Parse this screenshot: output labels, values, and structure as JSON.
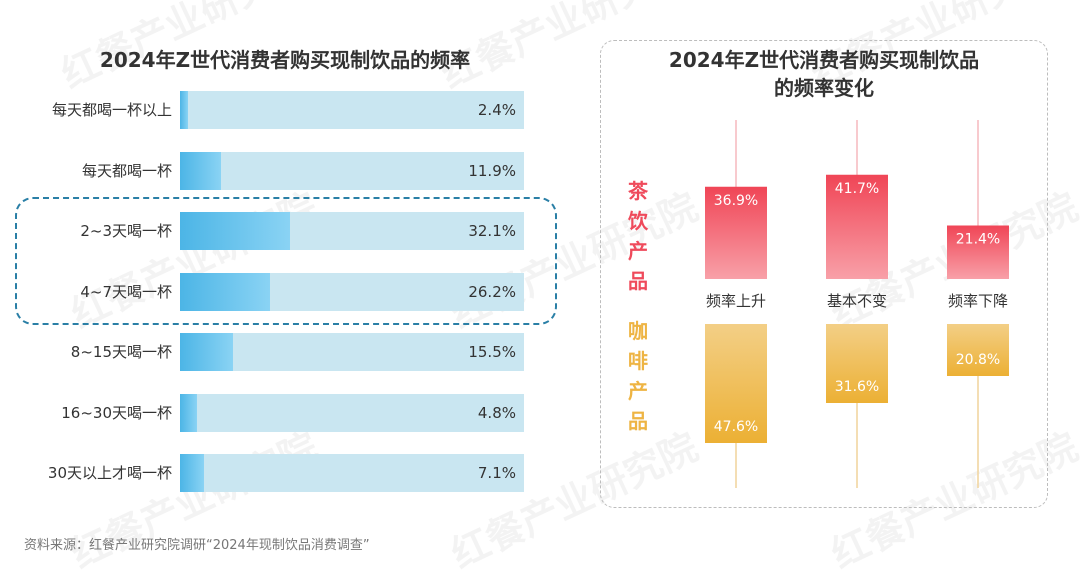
{
  "left_chart": {
    "title": "2024年Z世代消费者购买现制饮品的频率"
  },
  "right_chart": {
    "title_line1": "2024年Z世代消费者购买现制饮品",
    "title_line2": "的频率变化",
    "tea_label": "茶饮产品",
    "coffee_label": "咖啡产品"
  },
  "watermark": "红餐产业研究院",
  "source": "资料来源：红餐产业研究院调研“2024年现制饮品消费调查”",
  "colors": {
    "bar_track": "#c9e6f1",
    "bar_fill": "#4cb5e6",
    "tea": "#ef4a5b",
    "coffee": "#eeb443",
    "highlight_border": "#2a7fa6"
  },
  "chart_data": [
    {
      "type": "bar",
      "orientation": "horizontal",
      "title": "2024年Z世代消费者购买现制饮品的频率",
      "categories": [
        "每天都喝一杯以上",
        "每天都喝一杯",
        "2~3天喝一杯",
        "4~7天喝一杯",
        "8~15天喝一杯",
        "16~30天喝一杯",
        "30天以上才喝一杯"
      ],
      "values": [
        2.4,
        11.9,
        32.1,
        26.2,
        15.5,
        4.8,
        7.1
      ],
      "value_labels": [
        "2.4%",
        "11.9%",
        "32.1%",
        "26.2%",
        "15.5%",
        "4.8%",
        "7.1%"
      ],
      "unit": "%",
      "xlim": [
        0,
        100
      ],
      "highlighted_categories": [
        "2~3天喝一杯",
        "4~7天喝一杯"
      ]
    },
    {
      "type": "bar",
      "title": "2024年Z世代消费者购买现制饮品的频率变化",
      "categories": [
        "频率上升",
        "基本不变",
        "频率下降"
      ],
      "series": [
        {
          "name": "茶饮产品",
          "values": [
            36.9,
            41.7,
            21.4
          ],
          "value_labels": [
            "36.9%",
            "41.7%",
            "21.4%"
          ],
          "direction": "up"
        },
        {
          "name": "咖啡产品",
          "values": [
            47.6,
            31.6,
            20.8
          ],
          "value_labels": [
            "47.6%",
            "31.6%",
            "20.8%"
          ],
          "direction": "down"
        }
      ],
      "unit": "%",
      "ylim": [
        0,
        50
      ]
    }
  ]
}
